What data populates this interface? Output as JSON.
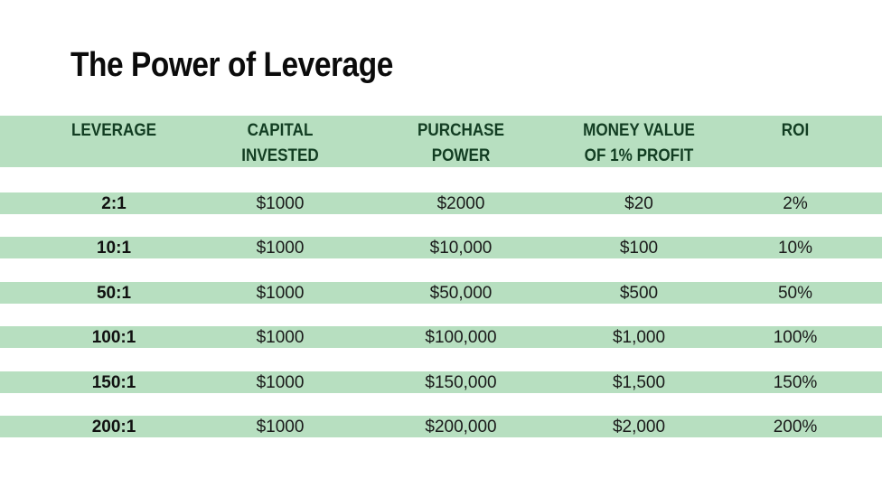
{
  "title": "The Power of Leverage",
  "colors": {
    "band": "#b7dfc0",
    "header_text": "#123d22",
    "text": "#1a1a1a"
  },
  "table": {
    "headers": [
      {
        "line1": "LEVERAGE",
        "line2": ""
      },
      {
        "line1": "CAPITAL",
        "line2": "INVESTED"
      },
      {
        "line1": "PURCHASE",
        "line2": "POWER"
      },
      {
        "line1": "MONEY VALUE",
        "line2": "OF 1% PROFIT"
      },
      {
        "line1": "ROI",
        "line2": ""
      }
    ],
    "rows": [
      [
        "2:1",
        "$1000",
        "$2000",
        "$20",
        "2%"
      ],
      [
        "10:1",
        "$1000",
        "$10,000",
        "$100",
        "10%"
      ],
      [
        "50:1",
        "$1000",
        "$50,000",
        "$500",
        "50%"
      ],
      [
        "100:1",
        "$1000",
        "$100,000",
        "$1,000",
        "100%"
      ],
      [
        "150:1",
        "$1000",
        "$150,000",
        "$1,500",
        "150%"
      ],
      [
        "200:1",
        "$1000",
        "$200,000",
        "$2,000",
        "200%"
      ]
    ]
  }
}
